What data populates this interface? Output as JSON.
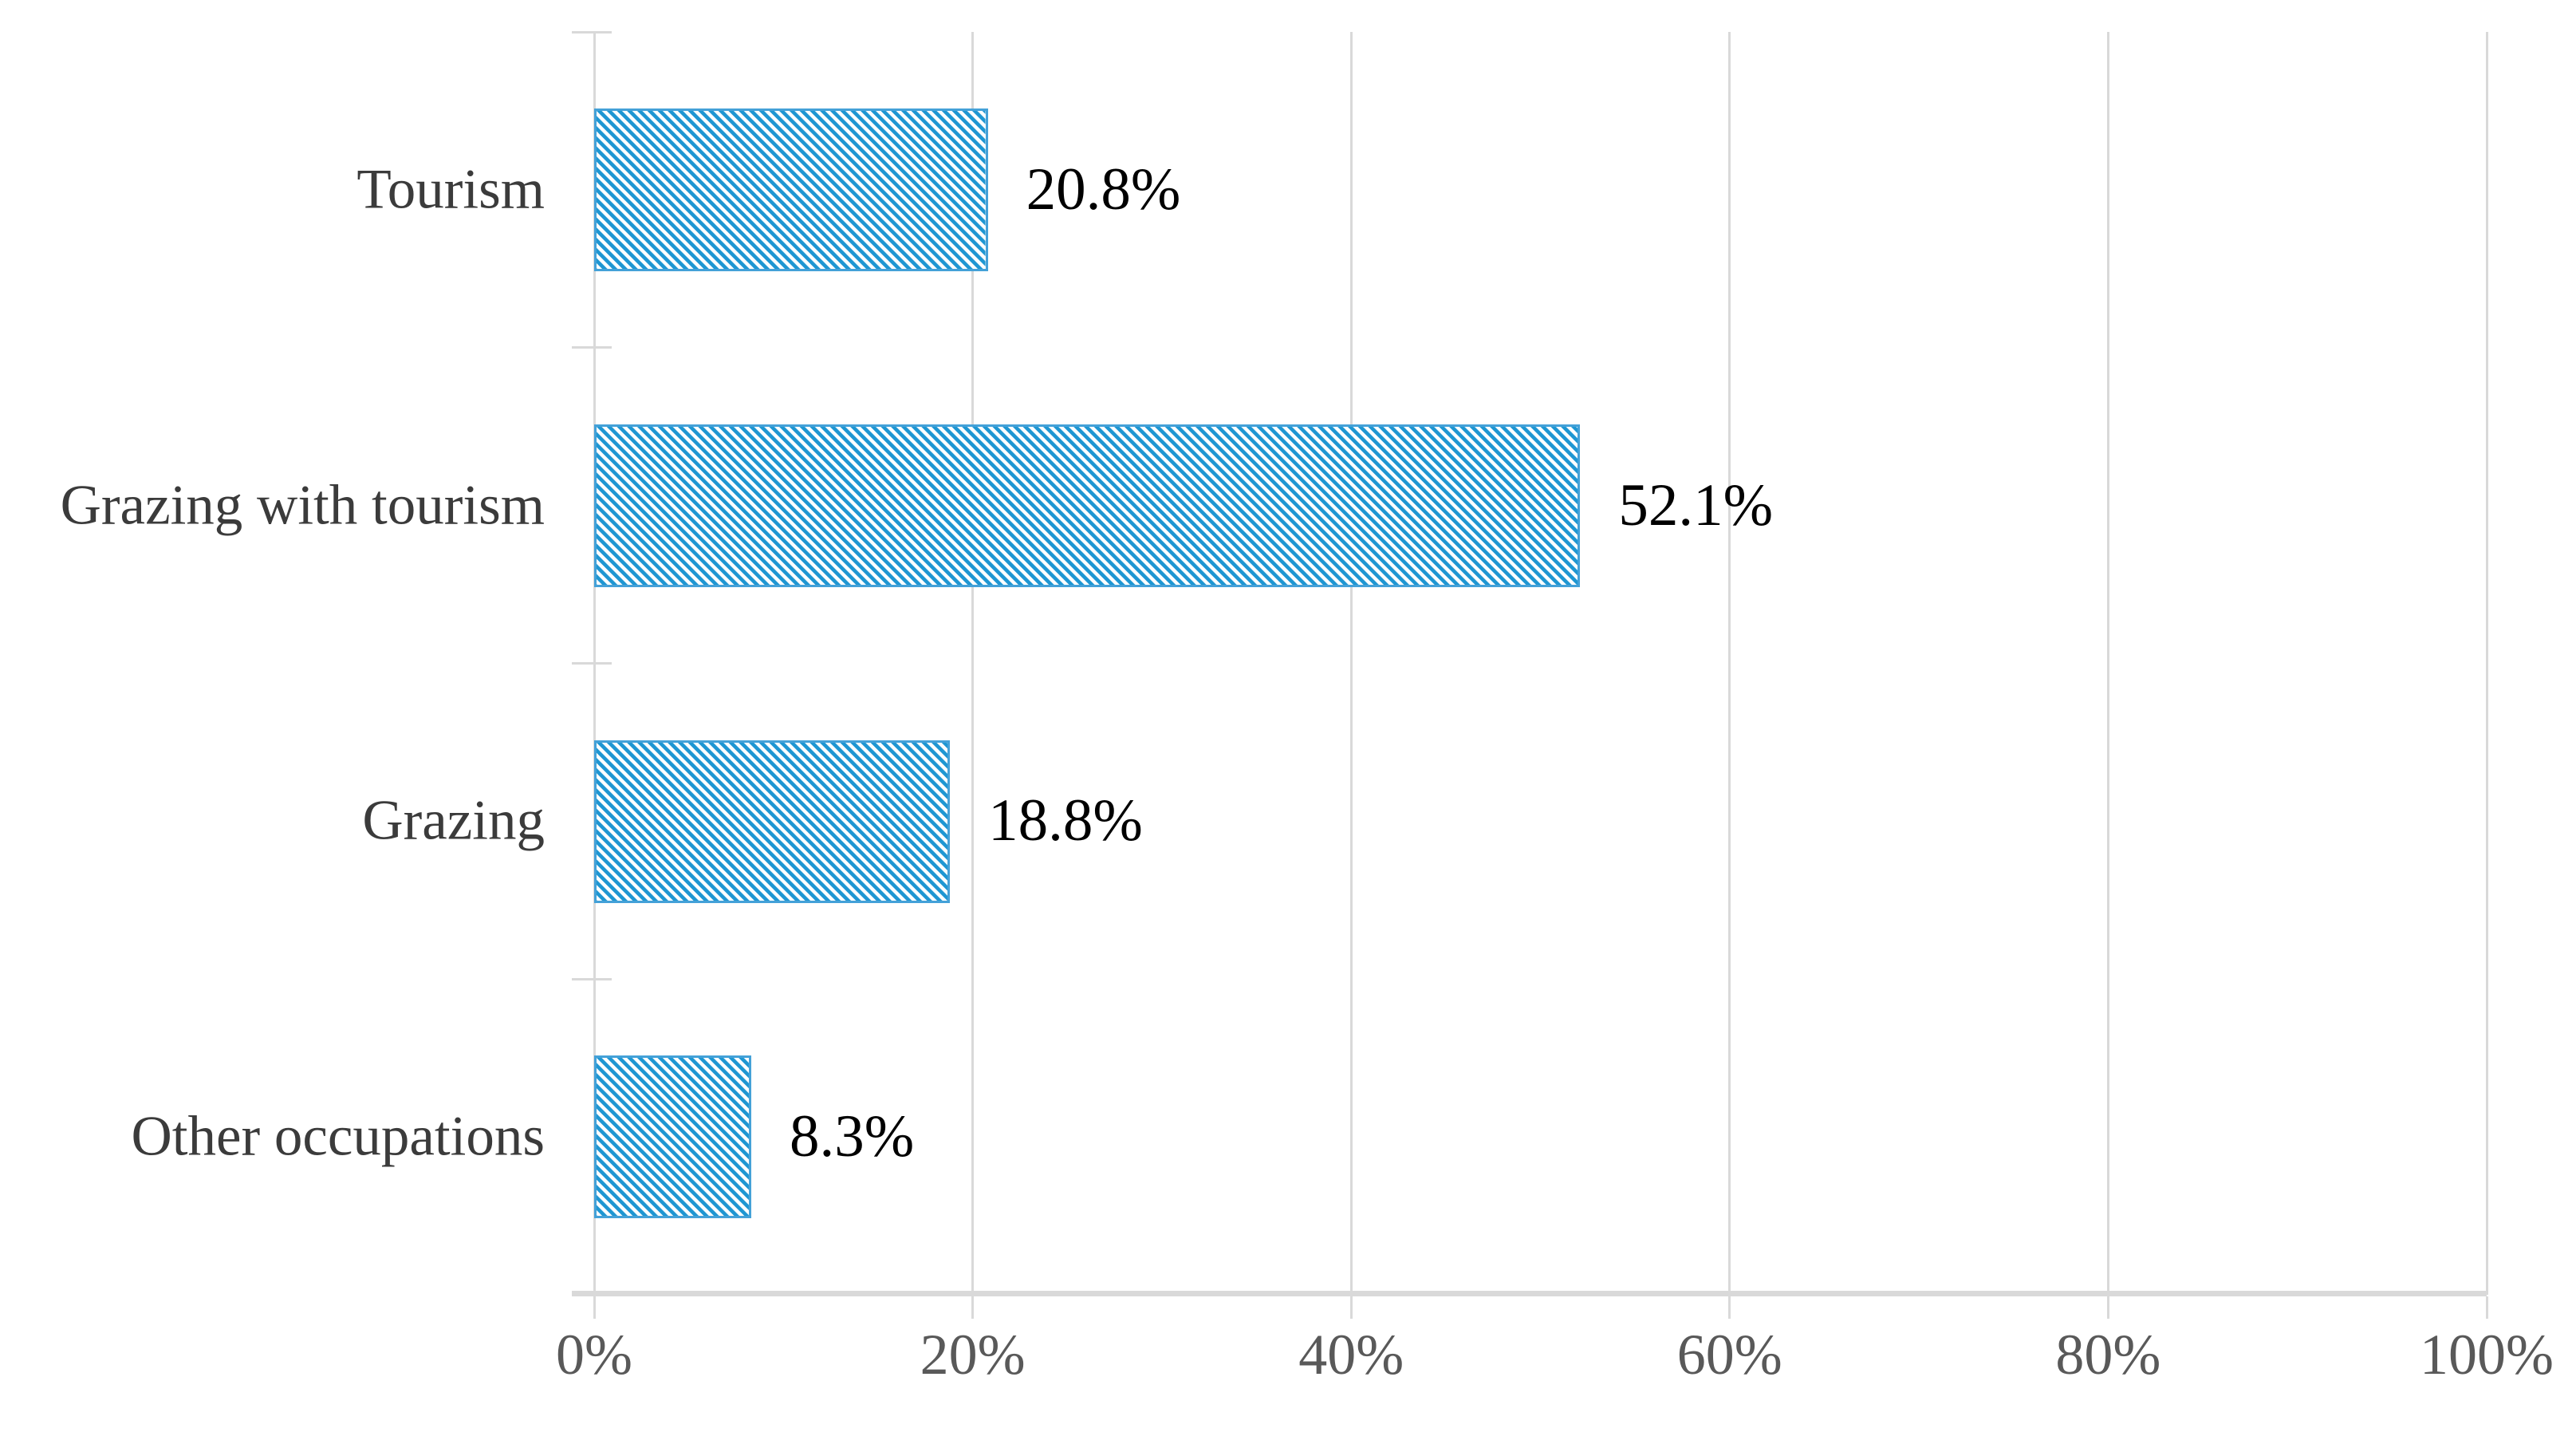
{
  "chart_data": {
    "type": "bar",
    "orientation": "horizontal",
    "title": "",
    "xlabel": "",
    "ylabel": "",
    "categories": [
      "Tourism",
      "Grazing with tourism",
      "Grazing",
      "Other occupations"
    ],
    "values": [
      20.8,
      52.1,
      18.8,
      8.3
    ],
    "data_labels": [
      "20.8%",
      "52.1%",
      "18.8%",
      "8.3%"
    ],
    "xlim": [
      0,
      100
    ],
    "x_ticks": [
      0,
      20,
      40,
      60,
      80,
      100
    ],
    "x_tick_labels": [
      "0%",
      "20%",
      "40%",
      "60%",
      "80%",
      "100%"
    ],
    "grid": "vertical gridlines at major x ticks",
    "legend": "none",
    "bar_fill_style": "diagonal hatch stripes, top-left to bottom-right",
    "colors": {
      "bar_stripe": "#1e96d2",
      "bar_background": "#ffffff",
      "bar_border": "#44a1d8",
      "gridline": "#d9d9d9",
      "axis_line": "#d9d9d9",
      "category_label": "#3b3b3b",
      "tick_label": "#595959",
      "data_label": "#000000",
      "background": "#ffffff"
    }
  }
}
